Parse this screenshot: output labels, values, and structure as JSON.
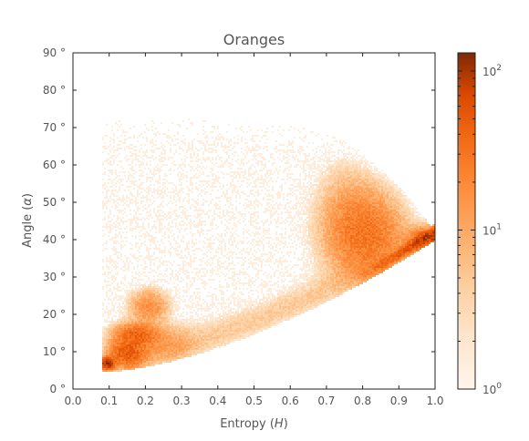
{
  "chart_data": {
    "type": "heatmap",
    "title": "Oranges",
    "xlabel_prefix": "Entropy (",
    "xlabel_var": "H",
    "xlabel_suffix": ")",
    "ylabel_prefix": "Angle (",
    "ylabel_var": "α",
    "ylabel_suffix": ")",
    "xlim": [
      0.0,
      1.0
    ],
    "ylim": [
      0,
      90
    ],
    "x_ticks": [
      0.0,
      0.1,
      0.2,
      0.3,
      0.4,
      0.5,
      0.6,
      0.7,
      0.8,
      0.9,
      1.0
    ],
    "x_tick_labels": [
      "0.0",
      "0.1",
      "0.2",
      "0.3",
      "0.4",
      "0.5",
      "0.6",
      "0.7",
      "0.8",
      "0.9",
      "1.0"
    ],
    "y_ticks": [
      0,
      10,
      20,
      30,
      40,
      50,
      60,
      70,
      80,
      90
    ],
    "y_tick_labels": [
      "0 °",
      "10 °",
      "20 °",
      "30 °",
      "40 °",
      "50 °",
      "60 °",
      "70 °",
      "80 °",
      "90 °"
    ],
    "colormap": "Oranges",
    "color_scale": "log",
    "colorbar": {
      "range": [
        1,
        130
      ],
      "ticks": [
        1,
        10,
        100
      ],
      "tick_labels": [
        "10",
        "10",
        "10"
      ],
      "tick_exponents": [
        "0",
        "1",
        "2"
      ]
    },
    "grid": false,
    "density_regions": [
      {
        "name": "upper-arc",
        "x": [
          0.05,
          1.0
        ],
        "y_center": 45,
        "y_spread": 25,
        "count_level": 1
      },
      {
        "name": "cluster-low-left",
        "x": [
          0.07,
          0.12
        ],
        "y": [
          5,
          9
        ],
        "count_level": 100
      },
      {
        "name": "cluster-12-18",
        "x": [
          0.1,
          0.25
        ],
        "y": [
          8,
          17
        ],
        "count_level": 30
      },
      {
        "name": "cluster-20-25",
        "x": [
          0.17,
          0.28
        ],
        "y": [
          18,
          26
        ],
        "count_level": 10
      },
      {
        "name": "cluster-right",
        "x": [
          0.73,
          0.9
        ],
        "y": [
          30,
          50
        ],
        "count_level": 10
      },
      {
        "name": "lower-boundary-ridge",
        "x": [
          0.8,
          0.99
        ],
        "y": [
          33,
          41
        ],
        "count_level": 60
      }
    ]
  },
  "colors": {
    "axis": "#222222",
    "text": "#555555",
    "cmap_low": "#fff5eb",
    "cmap_mid": "#fd8d3c",
    "cmap_high": "#7f2704"
  }
}
